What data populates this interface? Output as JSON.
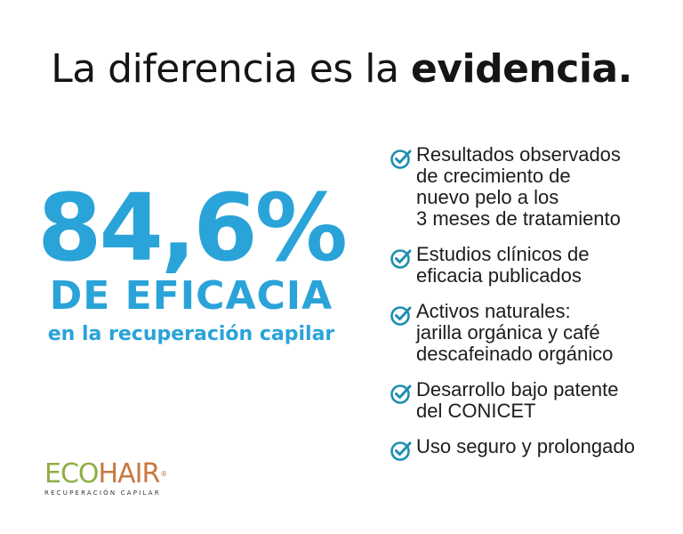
{
  "headline": {
    "regular": "La diferencia es la ",
    "bold": "evidencia."
  },
  "stat": {
    "number": "84,6%",
    "label": "DE EFICACIA",
    "sub": "en la recuperación capilar"
  },
  "benefits": [
    {
      "icon": "check-circle-icon",
      "text": "Resultados observados\nde crecimiento de\nnuevo pelo a los\n3 meses de tratamiento"
    },
    {
      "icon": "check-circle-icon",
      "text": "Estudios clínicos de\neficacia publicados"
    },
    {
      "icon": "check-circle-icon",
      "text": "Activos naturales:\njarilla orgánica y café\ndescafeinado orgánico"
    },
    {
      "icon": "check-circle-icon",
      "text": "Desarrollo bajo patente\ndel CONICET"
    },
    {
      "icon": "check-circle-icon",
      "text": "Uso seguro y prolongado"
    }
  ],
  "logo": {
    "eco": "ECO",
    "hair": "HAIR",
    "reg": "®",
    "tagline": "RECUPERACIÓN CAPILAR"
  },
  "colors": {
    "accent": "#2aa3d9",
    "check": "#1f8fb0",
    "logo_green": "#8fae45",
    "logo_orange": "#c9783f"
  }
}
